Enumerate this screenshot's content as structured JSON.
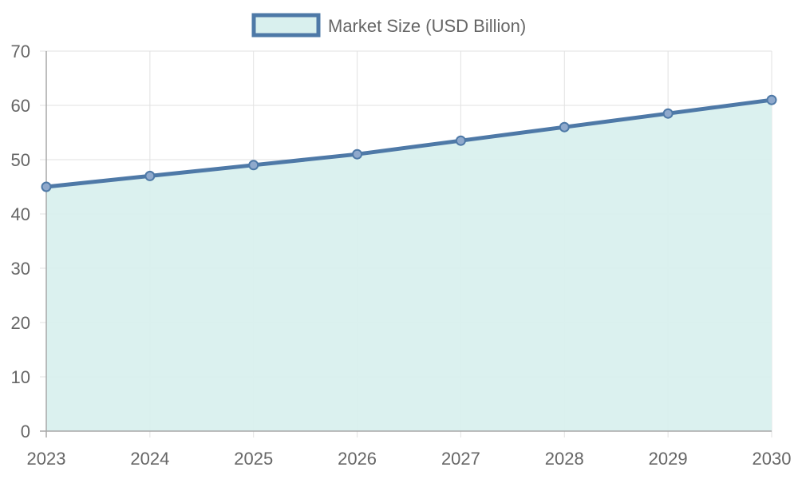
{
  "chart_data": {
    "type": "area",
    "title": "",
    "xlabel": "",
    "ylabel": "",
    "categories": [
      "2023",
      "2024",
      "2025",
      "2026",
      "2027",
      "2028",
      "2029",
      "2030"
    ],
    "series": [
      {
        "name": "Market Size (USD Billion)",
        "values": [
          45,
          47,
          49,
          51,
          53.5,
          56,
          58.5,
          61
        ],
        "line_color": "#4e79a7",
        "fill_color": "#d9f0ee"
      }
    ],
    "ylim": [
      0,
      70
    ],
    "y_ticks": [
      0,
      10,
      20,
      30,
      40,
      50,
      60,
      70
    ],
    "grid": true,
    "legend": "top-center"
  }
}
